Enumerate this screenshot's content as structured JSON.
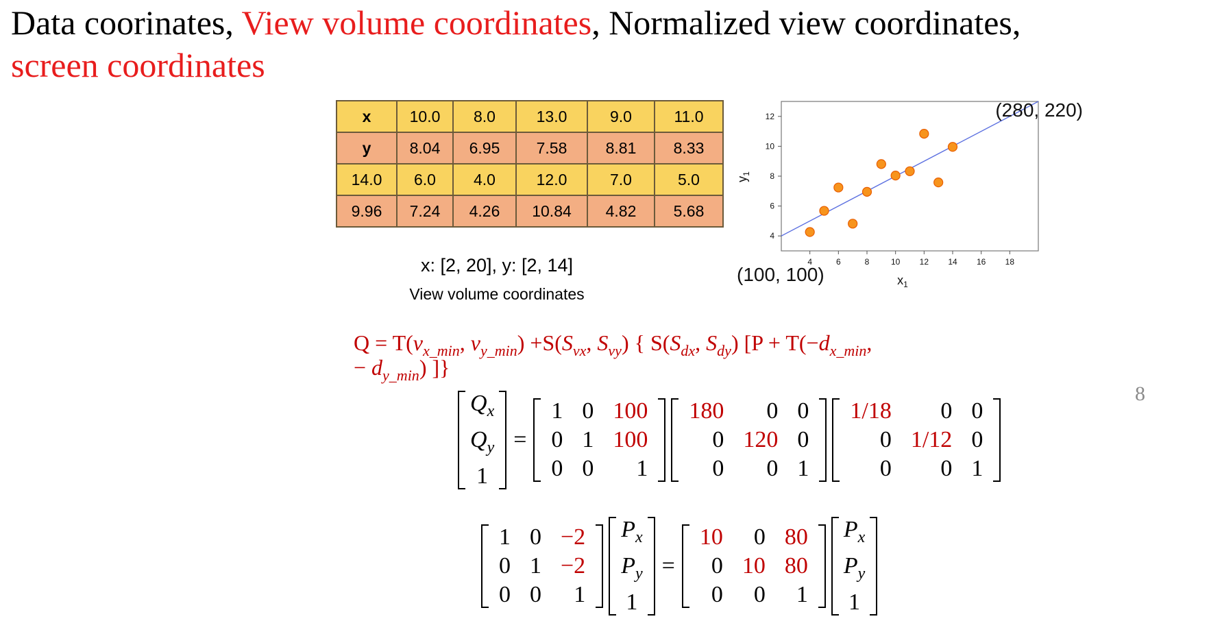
{
  "title": {
    "part1": "Data coorinates, ",
    "part2": "View volume coordinates",
    "part3": ", Normalized view coordinates, ",
    "part4": "screen coordinates"
  },
  "table": {
    "rows": [
      [
        "x",
        "10.0",
        "8.0",
        "13.0",
        "9.0",
        "11.0"
      ],
      [
        "y",
        "8.04",
        "6.95",
        "7.58",
        "8.81",
        "8.33"
      ],
      [
        "14.0",
        "6.0",
        "4.0",
        "12.0",
        "7.0",
        "5.0"
      ],
      [
        "9.96",
        "7.24",
        "4.26",
        "10.84",
        "4.82",
        "5.68"
      ]
    ]
  },
  "captions": {
    "range": "x: [2, 20], y: [2, 14]",
    "view_volume": "View volume coordinates"
  },
  "chart_data": {
    "type": "scatter",
    "xlabel": "x",
    "xlabel_sub": "1",
    "ylabel": "y",
    "ylabel_sub": "1",
    "xlim": [
      2,
      20
    ],
    "ylim": [
      3,
      13
    ],
    "x_ticks": [
      4,
      6,
      8,
      10,
      12,
      14,
      16,
      18
    ],
    "y_ticks": [
      4,
      6,
      8,
      10,
      12
    ],
    "x": [
      10.0,
      8.0,
      13.0,
      9.0,
      11.0,
      14.0,
      6.0,
      4.0,
      12.0,
      7.0,
      5.0
    ],
    "y": [
      8.04,
      6.95,
      7.58,
      8.81,
      8.33,
      9.96,
      7.24,
      4.26,
      10.84,
      4.82,
      5.68
    ],
    "fit_line": {
      "x": [
        2,
        20
      ],
      "y": [
        4.0,
        13.0
      ]
    },
    "corner_labels": {
      "bottom_left": "(100, 100)",
      "top_right": "(280, 220)"
    },
    "colors": {
      "point": "#f7941d",
      "point_stroke": "#e85d00",
      "line": "#5b6fe0"
    }
  },
  "page_number": "8",
  "formula": {
    "q": "Q",
    "eq": " = ",
    "T": "T(",
    "v": "v",
    "x_min": "x_min",
    "comma": ", ",
    "y_min": "y_min",
    "close": ")",
    "plus_S": " +S(",
    "S": "S",
    "vx": "vx",
    "vy": "vy",
    "open_brace": ") { S(",
    "dx": "dx",
    "dy": "dy",
    "bracket_P": ")  [P + T(−",
    "d": "d",
    "trail_comma": ",",
    "line2_minus": "− ",
    "line2_end": ") ]}"
  },
  "eq1": {
    "lhs": {
      "q": "Q",
      "subs": [
        "x",
        "y"
      ],
      "one": "1"
    },
    "equals": "=",
    "m1": [
      [
        "1",
        "0",
        "100"
      ],
      [
        "0",
        "1",
        "100"
      ],
      [
        "0",
        "0",
        "1"
      ]
    ],
    "m2": [
      [
        "180",
        "0",
        "0"
      ],
      [
        "0",
        "120",
        "0"
      ],
      [
        "0",
        "0",
        "1"
      ]
    ],
    "m3": [
      [
        "1/18",
        "0",
        "0"
      ],
      [
        "0",
        "1/12",
        "0"
      ],
      [
        "0",
        "0",
        "1"
      ]
    ]
  },
  "eq2": {
    "m1": [
      [
        "1",
        "0",
        "−2"
      ],
      [
        "0",
        "1",
        "−2"
      ],
      [
        "0",
        "0",
        "1"
      ]
    ],
    "vec": {
      "p": "P",
      "subs": [
        "x",
        "y"
      ],
      "one": "1"
    },
    "equals": "=",
    "m2": [
      [
        "10",
        "0",
        "80"
      ],
      [
        "0",
        "10",
        "80"
      ],
      [
        "0",
        "0",
        "1"
      ]
    ]
  }
}
